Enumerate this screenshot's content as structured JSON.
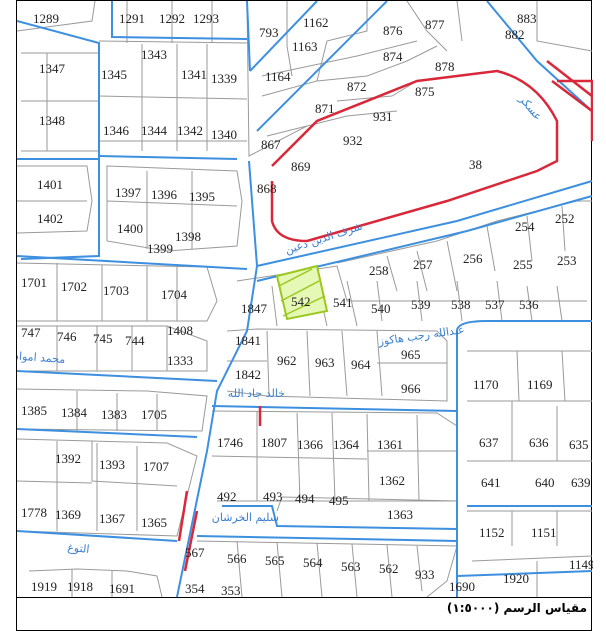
{
  "scale_label": "مقياس الرسم (١:٥٠٠٠)",
  "colors": {
    "road": "#3d8fe0",
    "parcel": "#9a9a9a",
    "highlight": "#b4e33a",
    "red": "#d8283a"
  },
  "highlighted_parcel": "542",
  "streets": [
    "شرف الدين دعين",
    "عبدالله رجب هاكوز",
    "محمد امواش",
    "خالد جاد الله",
    "سليم الخرشان",
    "التوغ",
    "عسكر"
  ],
  "lots": [
    "1289",
    "1291",
    "1292",
    "1293",
    "793",
    "1162",
    "876",
    "877",
    "883",
    "1163",
    "882",
    "1347",
    "1343",
    "1345",
    "1341",
    "1339",
    "1164",
    "874",
    "878",
    "872",
    "875",
    "871",
    "931",
    "1348",
    "1346",
    "1344",
    "1342",
    "1340",
    "867",
    "932",
    "869",
    "38",
    "868",
    "1401",
    "1397",
    "1396",
    "1395",
    "1402",
    "1400",
    "1398",
    "1399",
    "254",
    "252",
    "256",
    "257",
    "258",
    "255",
    "253",
    "1701",
    "1702",
    "1703",
    "1704",
    "1847",
    "542",
    "541",
    "540",
    "539",
    "538",
    "537",
    "536",
    "747",
    "746",
    "745",
    "744",
    "1408",
    "1333",
    "1841",
    "962",
    "963",
    "964",
    "965",
    "1842",
    "966",
    "1170",
    "1169",
    "1385",
    "1384",
    "1383",
    "1705",
    "1746",
    "1807",
    "1366",
    "1364",
    "1361",
    "637",
    "636",
    "635",
    "1392",
    "1393",
    "1707",
    "1362",
    "641",
    "640",
    "639",
    "1778",
    "1369",
    "1367",
    "1365",
    "492",
    "493",
    "494",
    "495",
    "1363",
    "1152",
    "1151",
    "1149",
    "567",
    "566",
    "565",
    "564",
    "563",
    "562",
    "933",
    "1690",
    "1920",
    "1919",
    "1918",
    "1691",
    "354",
    "353"
  ]
}
